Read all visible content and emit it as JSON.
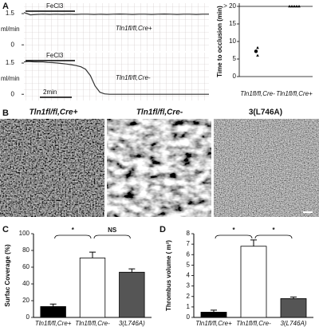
{
  "panel_labels": [
    "A",
    "B",
    "C",
    "D"
  ],
  "images": {
    "titles": [
      "Tln1fl/fl,Cre+",
      "Tln1fl/fl,Cre-",
      "3(L746A)"
    ]
  },
  "chart_data": [
    {
      "type": "trace",
      "y_label": "ml/min",
      "annotation": "FeCl3",
      "series_label": "Tln1fl/fl,Cre+",
      "values": [
        1.55,
        1.44,
        1.46,
        1.47,
        1.46,
        1.47,
        1.46,
        1.47,
        1.46,
        1.47,
        1.47,
        1.46,
        1.47,
        1.46,
        1.47,
        1.48,
        1.47,
        1.46,
        1.47,
        1.47,
        1.46,
        1.47,
        1.48,
        1.47,
        1.46,
        1.47,
        1.47,
        1.46,
        1.47,
        1.47
      ],
      "ylim": [
        -0.3,
        2.0
      ],
      "yticks": [
        0,
        1.5
      ],
      "color": "#333333"
    },
    {
      "type": "trace",
      "y_label": "ml/min",
      "annotation": "FeCl3",
      "series_label": "Tln1fl/fl,Cre-",
      "scale_bar_label": "2min",
      "values": [
        1.55,
        1.58,
        1.56,
        1.55,
        1.55,
        1.53,
        1.52,
        1.5,
        1.48,
        1.45,
        1.42,
        1.38,
        1.32,
        1.2,
        0.9,
        0.4,
        0.1,
        0.02,
        0,
        0,
        0,
        0,
        0,
        0,
        0,
        0,
        0,
        0,
        0,
        0,
        0,
        0,
        0,
        0,
        0,
        0,
        0,
        0,
        0,
        0
      ],
      "ylim": [
        -0.3,
        2.0
      ],
      "yticks": [
        0,
        1.5
      ],
      "color": "#333333"
    },
    {
      "type": "scatter",
      "y_label": "Time to occlusion (min)",
      "categories": [
        "Tln1fl/fl,Cre-",
        "Tln1fl/fl,Cre+"
      ],
      "values": [
        [
          8.2,
          7.2,
          6.0
        ],
        [
          20,
          20,
          20,
          20,
          20
        ]
      ],
      "ylim": [
        0,
        20
      ],
      "yticks": [
        0,
        5,
        10,
        15,
        {
          "value": 20,
          "label": "> 20"
        }
      ],
      "color": "#000000"
    },
    {
      "type": "bar",
      "y_label": "Surfac Coverage (%)",
      "categories": [
        "Tln1fl/fl,Cre+",
        "Tln1fl/fl,Cre-",
        "3(L746A)"
      ],
      "values": [
        13,
        71,
        54
      ],
      "errors": [
        3,
        7,
        4
      ],
      "colors": [
        "#000000",
        "#ffffff",
        "#555555"
      ],
      "ylim": [
        0,
        100
      ],
      "yticks": [
        0,
        20,
        40,
        60,
        80,
        100
      ],
      "significance": [
        {
          "pair": [
            0,
            1
          ],
          "label": "*"
        },
        {
          "pair": [
            1,
            2
          ],
          "label": "NS"
        }
      ]
    },
    {
      "type": "bar",
      "y_label": "Thrombus volume ( m³)",
      "categories": [
        "Tln1fl/fl,Cre+",
        "Tln1fl/fl,Cre-",
        "3(L746A)"
      ],
      "values": [
        0.5,
        6.8,
        1.8
      ],
      "errors": [
        0.2,
        0.6,
        0.15
      ],
      "colors": [
        "#000000",
        "#ffffff",
        "#555555"
      ],
      "ylim": [
        0,
        8
      ],
      "yticks": [
        0,
        1,
        2,
        3,
        4,
        5,
        6,
        7,
        8
      ],
      "significance": [
        {
          "pair": [
            0,
            1
          ],
          "label": "*"
        },
        {
          "pair": [
            1,
            2
          ],
          "label": "*"
        }
      ]
    }
  ]
}
